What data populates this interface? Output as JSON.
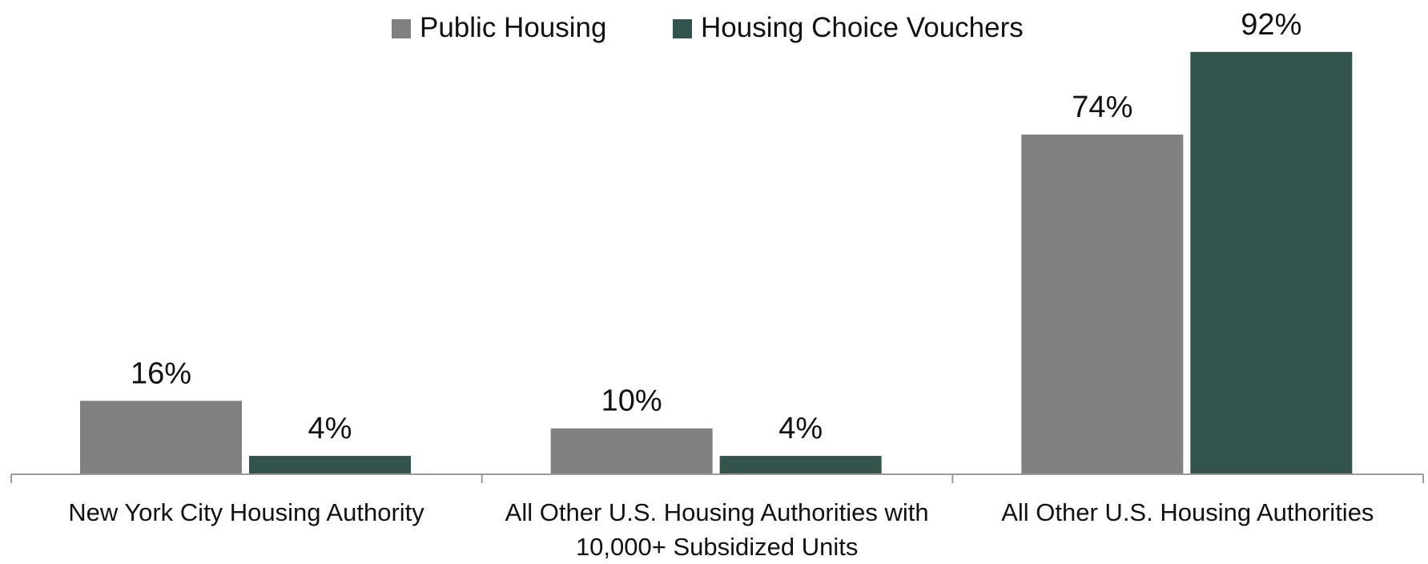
{
  "chart_data": {
    "type": "bar",
    "categories": [
      "New York City Housing Authority",
      "All Other U.S. Housing Authorities with 10,000+ Subsidized Units",
      "All Other U.S. Housing Authorities"
    ],
    "series": [
      {
        "name": "Public Housing",
        "color": "#808080",
        "values": [
          16,
          10,
          74
        ],
        "value_labels": [
          "16%",
          "10%",
          "74%"
        ]
      },
      {
        "name": "Housing Choice Vouchers",
        "color": "#32544c",
        "values": [
          4,
          4,
          92
        ],
        "value_labels": [
          "4%",
          "4%",
          "92%"
        ]
      }
    ],
    "ylim": [
      0,
      100
    ],
    "legend": "top"
  }
}
